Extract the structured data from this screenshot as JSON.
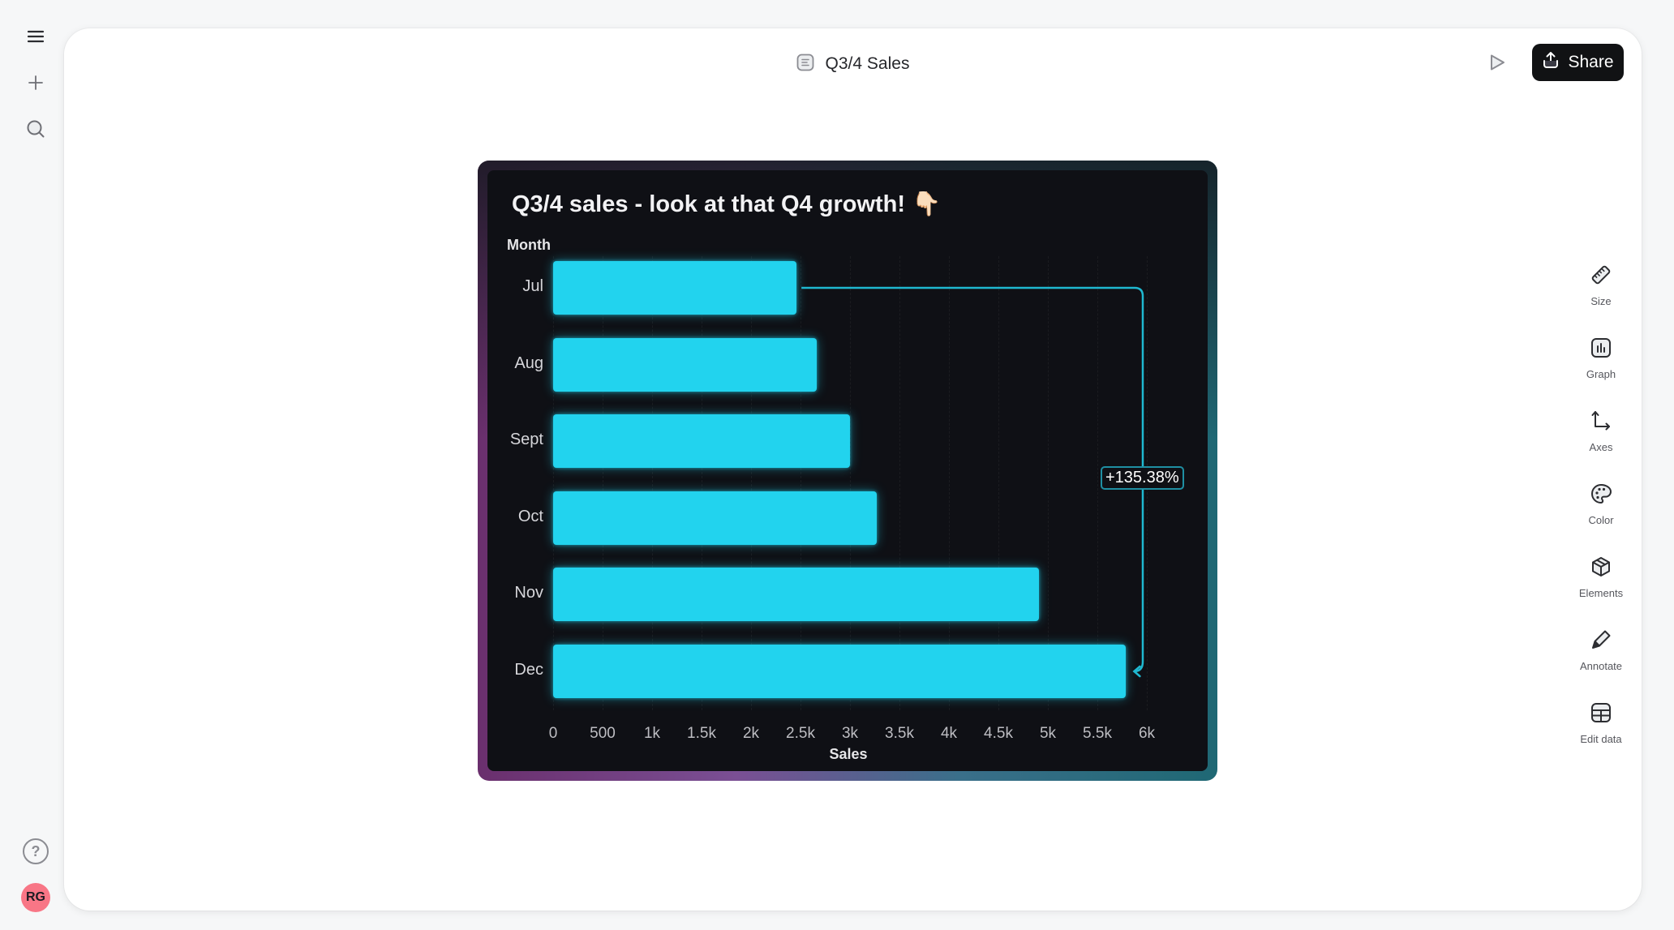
{
  "leftbar": {
    "menu_icon": "hamburger-menu-icon",
    "new_icon": "plus-icon",
    "search_icon": "search-icon",
    "help_label": "?",
    "avatar_initials": "RG",
    "avatar_color": "#f87686"
  },
  "header": {
    "doc_icon": "document-icon",
    "title": "Q3/4 Sales",
    "play_icon": "play-icon",
    "share_label": "Share"
  },
  "rightbar": {
    "items": [
      {
        "icon": "ruler-icon",
        "label": "Size"
      },
      {
        "icon": "bar-chart-icon",
        "label": "Graph"
      },
      {
        "icon": "axes-icon",
        "label": "Axes"
      },
      {
        "icon": "palette-icon",
        "label": "Color"
      },
      {
        "icon": "cube-icon",
        "label": "Elements"
      },
      {
        "icon": "pen-icon",
        "label": "Annotate"
      },
      {
        "icon": "table-icon",
        "label": "Edit data"
      }
    ]
  },
  "colors": {
    "bar": "#22d3ee",
    "panel_bg": "#0f1015",
    "annotation": "#1fb8d0"
  },
  "chart_data": {
    "type": "bar",
    "orientation": "horizontal",
    "title": "Q3/4 sales - look at that Q4 growth! 👇🏻",
    "ylabel": "Month",
    "xlabel": "Sales",
    "categories": [
      "Jul",
      "Aug",
      "Sept",
      "Oct",
      "Nov",
      "Dec"
    ],
    "values": [
      2460,
      2660,
      3000,
      3270,
      4910,
      5790
    ],
    "xlim": [
      0,
      6000
    ],
    "x_ticks": [
      "0",
      "500",
      "1k",
      "1.5k",
      "2k",
      "2.5k",
      "3k",
      "3.5k",
      "4k",
      "4.5k",
      "5k",
      "5.5k",
      "6k"
    ],
    "grid": true,
    "legend": null,
    "annotations": [
      {
        "type": "difference-arrow",
        "from": "Jul",
        "to": "Dec",
        "label": "+135.38%"
      }
    ]
  }
}
